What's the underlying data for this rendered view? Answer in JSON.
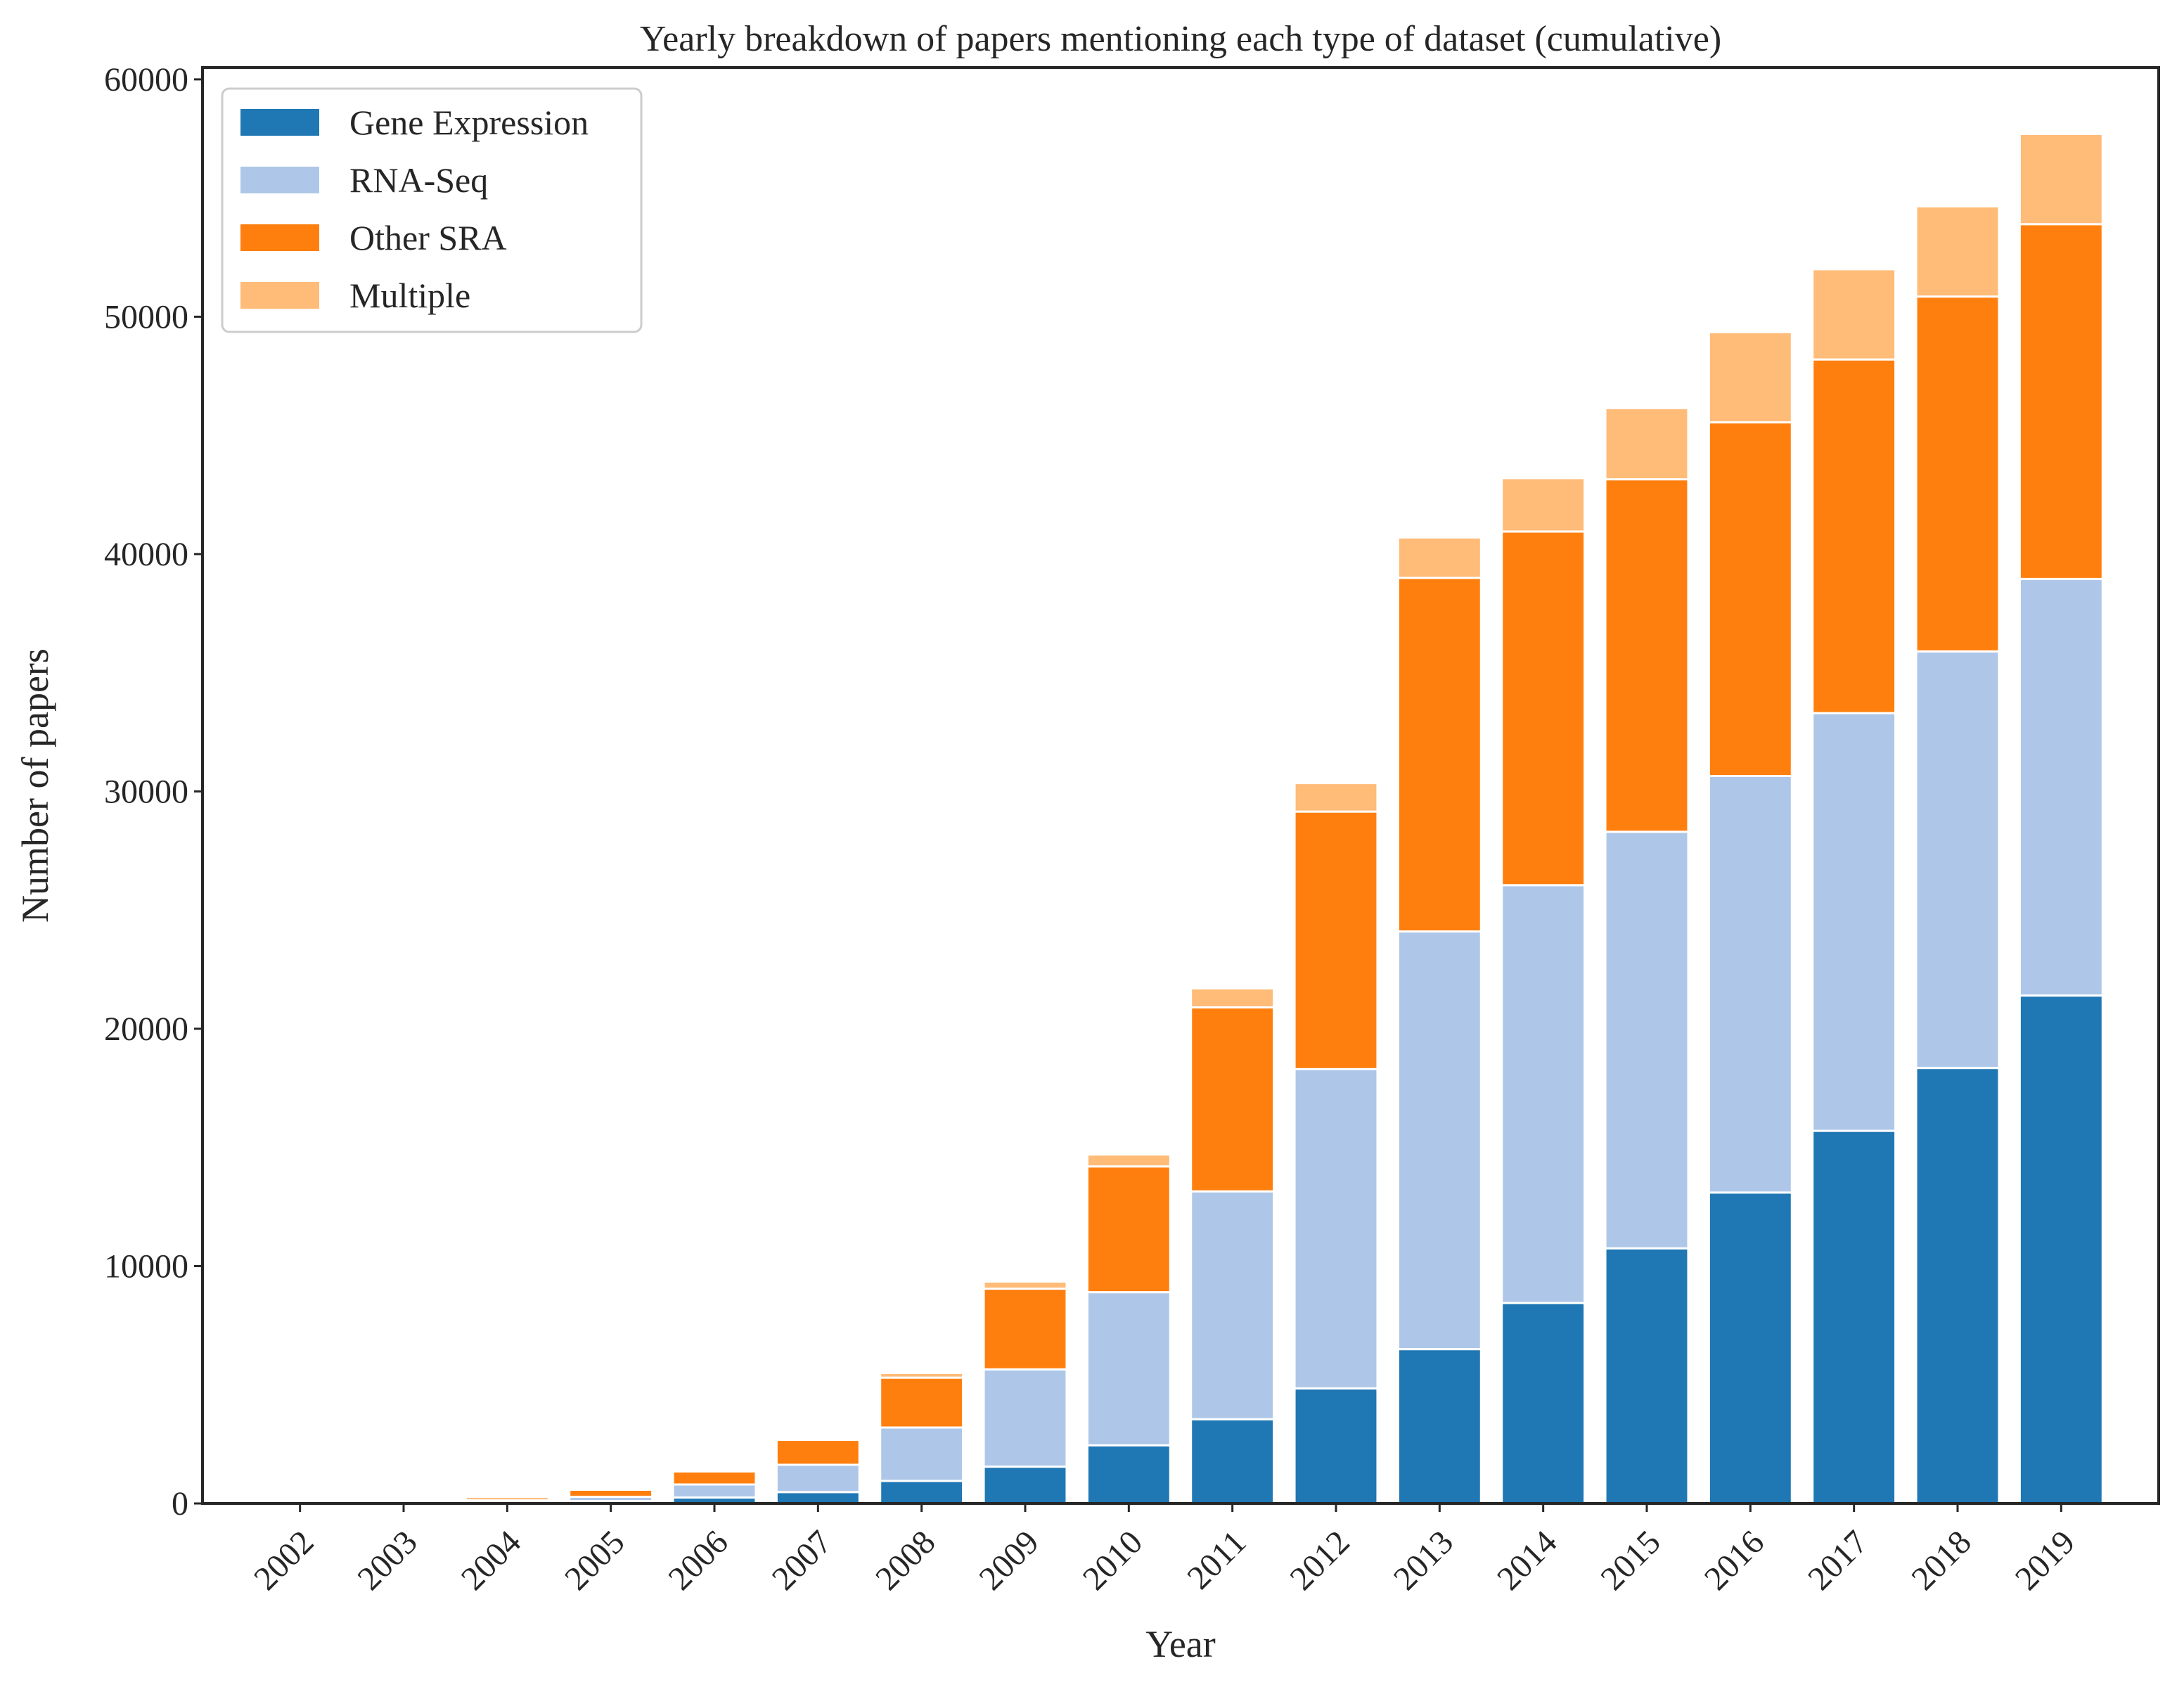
{
  "chart_data": {
    "type": "bar",
    "stacked": true,
    "title": "Yearly breakdown of papers mentioning each type of dataset (cumulative)",
    "xlabel": "Year",
    "ylabel": "Number of papers",
    "ylim": [
      0,
      60500
    ],
    "yticks": [
      0,
      10000,
      20000,
      30000,
      40000,
      50000,
      60000
    ],
    "grid": false,
    "legend_position": "top-left",
    "categories": [
      "2002",
      "2003",
      "2004",
      "2005",
      "2006",
      "2007",
      "2008",
      "2009",
      "2010",
      "2011",
      "2012",
      "2013",
      "2014",
      "2015",
      "2016",
      "2017",
      "2018",
      "2019"
    ],
    "series": [
      {
        "name": "Gene Expression",
        "color": "#1f77b4",
        "values": [
          0,
          0,
          30,
          100,
          250,
          480,
          950,
          1550,
          2450,
          3550,
          4850,
          6500,
          8450,
          10750,
          13100,
          15700,
          18350,
          21400
        ]
      },
      {
        "name": "RNA-Seq",
        "color": "#aec7e8",
        "values": [
          0,
          0,
          60,
          180,
          550,
          1150,
          2250,
          4100,
          6450,
          9600,
          13450,
          17600,
          17600,
          17550,
          17550,
          17600,
          17550,
          17550
        ]
      },
      {
        "name": "Other SRA",
        "color": "#ff7f0e",
        "values": [
          0,
          0,
          40,
          300,
          550,
          1050,
          2100,
          3400,
          5300,
          7750,
          10850,
          14900,
          14900,
          14850,
          14900,
          14900,
          14950,
          14950
        ]
      },
      {
        "name": "Multiple",
        "color": "#ffbb78",
        "values": [
          0,
          0,
          150,
          80,
          80,
          80,
          200,
          300,
          500,
          800,
          1200,
          1700,
          2250,
          3000,
          3800,
          3800,
          3800,
          3800
        ]
      }
    ]
  }
}
